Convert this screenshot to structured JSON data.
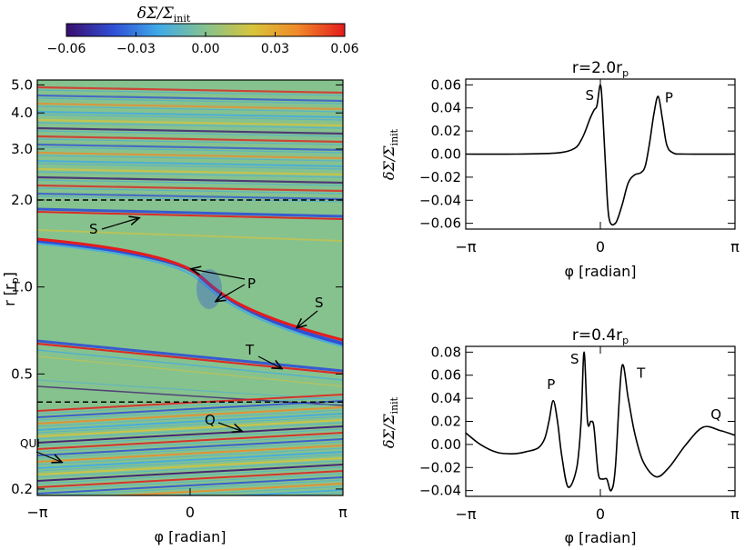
{
  "colorbar": {
    "title": "δΣ/Σ",
    "title_sub": "init",
    "ticks": [
      "−0.06",
      "−0.03",
      "0.00",
      "0.03",
      "0.06"
    ],
    "range": [
      -0.06,
      0.06
    ]
  },
  "colors": {
    "c0": "#3a0e6e",
    "c1": "#2f50d6",
    "c2": "#3fa9e8",
    "c3": "#86c28e",
    "c4": "#d8c43a",
    "c5": "#f08a2a",
    "c6": "#e41c1c",
    "bg_map": "#86c28e"
  },
  "map": {
    "ylabel_main": "r",
    "ylabel_unit_open": "[r",
    "ylabel_unit_sub": "p",
    "ylabel_unit_close": "]",
    "xlabel": "φ  [radian]",
    "xticks": [
      "−π",
      "0",
      "π"
    ],
    "yticks": [
      {
        "r": 5.0,
        "label": "5.0"
      },
      {
        "r": 4.0,
        "label": "4.0"
      },
      {
        "r": 3.0,
        "label": "3.0"
      },
      {
        "r": 2.0,
        "label": "2.0"
      },
      {
        "r": 1.0,
        "label": "1.0"
      },
      {
        "r": 0.5,
        "label": "0.5"
      },
      {
        "r": 0.2,
        "label": "0.2"
      }
    ],
    "rlim": [
      0.19,
      5.2
    ],
    "dashed_r": [
      2.0,
      0.4
    ],
    "annotations": [
      {
        "id": "S1",
        "text": "S"
      },
      {
        "id": "P",
        "text": "P"
      },
      {
        "id": "S2",
        "text": "S"
      },
      {
        "id": "T",
        "text": "T"
      },
      {
        "id": "Q",
        "text": "Q"
      },
      {
        "id": "QUI",
        "text": "QUI"
      }
    ]
  },
  "chart_data": [
    {
      "type": "line",
      "title": "r=2.0r",
      "title_sub": "p",
      "xlabel": "φ  [radian]",
      "ylabel": "δΣ/Σ",
      "ylabel_sub": "init",
      "xlim": [
        -3.14159,
        3.14159
      ],
      "ylim": [
        -0.065,
        0.065
      ],
      "xticks": [
        "−π",
        "0",
        "π"
      ],
      "yticks": [
        "0.06",
        "0.04",
        "0.02",
        "0.00",
        "−0.02",
        "−0.04",
        "−0.06"
      ],
      "ytick_values": [
        0.06,
        0.04,
        0.02,
        0.0,
        -0.02,
        -0.04,
        -0.06
      ],
      "x": [
        -3.14,
        -2.0,
        -1.0,
        -0.6,
        -0.45,
        -0.35,
        -0.25,
        -0.15,
        -0.08,
        0.0,
        0.05,
        0.12,
        0.2,
        0.35,
        0.5,
        0.65,
        0.8,
        0.95,
        1.05,
        1.15,
        1.25,
        1.35,
        1.45,
        1.55,
        1.7,
        2.0,
        3.14
      ],
      "y": [
        0.0,
        0.0,
        0.001,
        0.005,
        0.012,
        0.02,
        0.03,
        0.038,
        0.042,
        0.06,
        0.04,
        -0.01,
        -0.055,
        -0.06,
        -0.045,
        -0.025,
        -0.018,
        -0.016,
        -0.01,
        0.01,
        0.035,
        0.05,
        0.03,
        0.008,
        0.001,
        0.0,
        0.0
      ],
      "labels": [
        {
          "text": "S",
          "x": -0.25,
          "y": 0.047
        },
        {
          "text": "P",
          "x": 1.6,
          "y": 0.045
        }
      ]
    },
    {
      "type": "line",
      "title": "r=0.4r",
      "title_sub": "p",
      "xlabel": "φ  [radian]",
      "ylabel": "δΣ/Σ",
      "ylabel_sub": "init",
      "xlim": [
        -3.14159,
        3.14159
      ],
      "ylim": [
        -0.045,
        0.085
      ],
      "xticks": [
        "−π",
        "0",
        "π"
      ],
      "yticks": [
        "0.08",
        "0.06",
        "0.04",
        "0.02",
        "0.00",
        "−0.02",
        "−0.04"
      ],
      "ytick_values": [
        0.08,
        0.06,
        0.04,
        0.02,
        0.0,
        -0.02,
        -0.04
      ],
      "x": [
        -3.14,
        -2.8,
        -2.4,
        -2.0,
        -1.7,
        -1.45,
        -1.3,
        -1.2,
        -1.1,
        -1.0,
        -0.9,
        -0.75,
        -0.55,
        -0.45,
        -0.38,
        -0.3,
        -0.22,
        -0.15,
        -0.05,
        0.05,
        0.15,
        0.25,
        0.35,
        0.5,
        0.65,
        0.8,
        1.0,
        1.3,
        1.6,
        2.0,
        2.4,
        2.8,
        3.14
      ],
      "y": [
        0.01,
        0.0,
        -0.007,
        -0.008,
        -0.006,
        -0.003,
        0.005,
        0.02,
        0.038,
        0.02,
        -0.01,
        -0.037,
        -0.02,
        0.02,
        0.08,
        0.02,
        0.02,
        0.015,
        -0.025,
        -0.03,
        -0.03,
        -0.04,
        -0.02,
        0.067,
        0.04,
        0.01,
        -0.015,
        -0.028,
        -0.02,
        0.0,
        0.015,
        0.012,
        0.008
      ],
      "labels": [
        {
          "text": "P",
          "x": -1.15,
          "y": 0.048
        },
        {
          "text": "S",
          "x": -0.6,
          "y": 0.07
        },
        {
          "text": "T",
          "x": 0.95,
          "y": 0.058
        },
        {
          "text": "Q",
          "x": 2.7,
          "y": 0.022
        }
      ]
    }
  ]
}
